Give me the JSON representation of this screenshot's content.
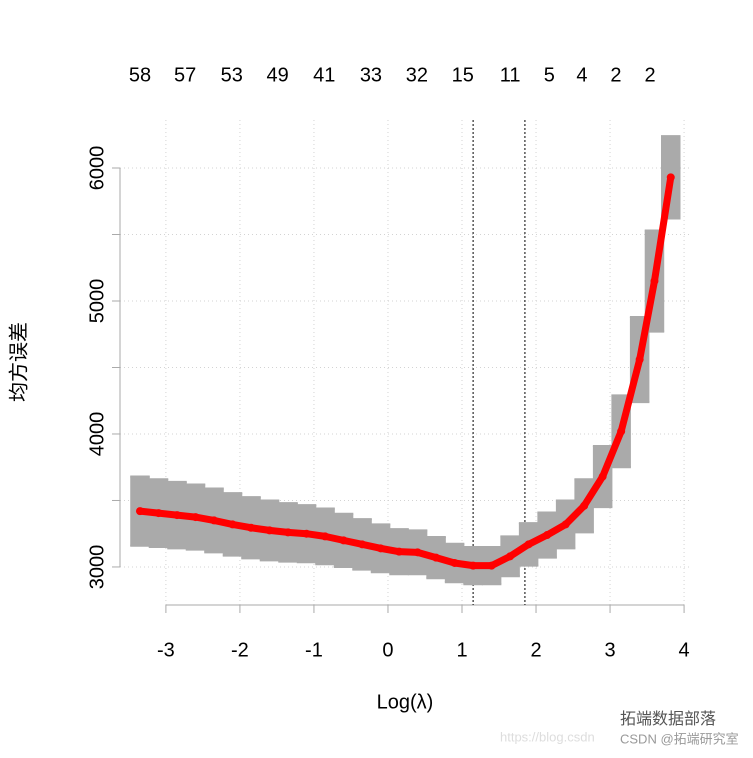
{
  "chart_data": {
    "type": "errorbar",
    "x_label": "Log(λ)",
    "y_label": "均方误差",
    "x": [
      -3.35,
      -3.1,
      -2.85,
      -2.6,
      -2.35,
      -2.1,
      -1.85,
      -1.6,
      -1.35,
      -1.1,
      -0.85,
      -0.6,
      -0.35,
      -0.1,
      0.15,
      0.4,
      0.65,
      0.9,
      1.15,
      1.4,
      1.65,
      1.9,
      2.15,
      2.4,
      2.65,
      2.9,
      3.15,
      3.4,
      3.6,
      3.82
    ],
    "values": [
      3420,
      3405,
      3390,
      3375,
      3350,
      3320,
      3295,
      3275,
      3260,
      3250,
      3230,
      3200,
      3170,
      3140,
      3115,
      3110,
      3070,
      3030,
      3010,
      3010,
      3080,
      3170,
      3240,
      3320,
      3460,
      3680,
      4020,
      4560,
      5150,
      5930
    ],
    "error": [
      260,
      255,
      250,
      245,
      240,
      235,
      230,
      225,
      220,
      215,
      210,
      200,
      190,
      180,
      170,
      165,
      155,
      145,
      140,
      140,
      150,
      160,
      170,
      180,
      200,
      230,
      270,
      320,
      380,
      310
    ],
    "color": "#ff0000",
    "error_color": "#aaaaaa",
    "xlim": [
      -3.62,
      4.08
    ],
    "ylim": [
      2714,
      6361
    ],
    "xticks": [
      -3,
      -2,
      -1,
      0,
      1,
      2,
      3,
      4
    ],
    "yticks": [
      3000,
      4000,
      5000,
      6000
    ],
    "minor_yticks": [
      3500,
      4500,
      5500
    ],
    "grid": true,
    "vlines": [
      1.15,
      1.85
    ],
    "top_x": [
      -3.35,
      -2.74,
      -2.11,
      -1.49,
      -0.86,
      -0.23,
      0.39,
      1.01,
      1.65,
      2.18,
      2.62,
      3.08,
      3.54
    ],
    "top_labels": [
      "58",
      "57",
      "53",
      "49",
      "41",
      "33",
      "32",
      "15",
      "11",
      "5",
      "4",
      "2",
      "2"
    ],
    "watermark": [
      "拓端数据部落",
      "CSDN @拓端研究室",
      "https://blog.csdn"
    ]
  }
}
